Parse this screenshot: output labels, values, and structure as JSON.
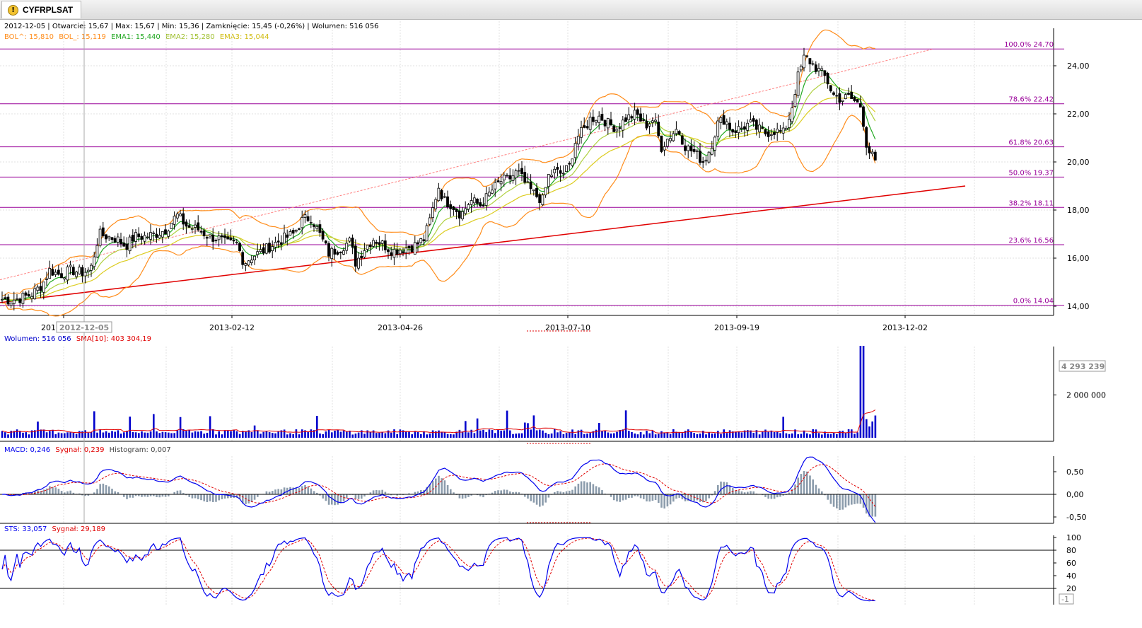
{
  "window": {
    "tab_title": "CYFRPLSAT"
  },
  "colors": {
    "candle": "#000000",
    "bol": "#ff8c1a",
    "ema1": "#22a822",
    "ema2": "#b0d040",
    "ema3": "#dccc20",
    "fib": "#990099",
    "trend_upper": "#ff8080",
    "trend_lower": "#e00000",
    "volume": "#0000cc",
    "sma": "#e00000",
    "macd": "#0000ee",
    "signal": "#e00000",
    "histogram": "#8c9cac",
    "sts": "#0000ee",
    "sts_signal": "#e00000"
  },
  "header": {
    "ohlc": "2012-12-05 | Otwarcie: 15,67 | Max: 15,67 | Min: 15,36 | Zamknięcie: 15,45 (-0,26%)  | Wolumen: 516 056",
    "bol_up": "BOL^: 15,810",
    "bol_dn": "BOL_: 15,119",
    "ema1": "EMA1: 15,440",
    "ema2": "EMA2: 15,280",
    "ema3": "EMA3: 15,044"
  },
  "cursor": {
    "date_label": "2012-12-05",
    "x_label_partial": "201"
  },
  "volume_panel": {
    "label": "Wolumen: 516 056",
    "sma_label": "SMA[10]: 403 304,19",
    "max_badge": "4 293 239"
  },
  "macd_panel": {
    "macd_label": "MACD: 0,246",
    "signal_label": "Sygnał: 0,239",
    "hist_label": "Histogram: 0,007"
  },
  "sts_panel": {
    "sts_label": "STS: 33,057",
    "signal_label": "Sygnał: 29,189",
    "badge": "-1"
  },
  "chart_data": [
    {
      "type": "candlestick",
      "title": "CYFRPLSAT",
      "x_ticks": [
        "2013-02-12",
        "2013-04-26",
        "2013-07-10",
        "2013-09-19",
        "2013-12-02"
      ],
      "y_ticks": [
        "14,00",
        "16,00",
        "18,00",
        "20,00",
        "22,00",
        "24,00"
      ],
      "ylim": [
        14,
        25
      ],
      "grid": true,
      "fibonacci": [
        {
          "label": "100.0% 24.70",
          "value": 24.7
        },
        {
          "label": "78.6% 22.42",
          "value": 22.42
        },
        {
          "label": "61.8% 20.63",
          "value": 20.63
        },
        {
          "label": "50.0% 19.37",
          "value": 19.37
        },
        {
          "label": "38.2% 18.11",
          "value": 18.11
        },
        {
          "label": "23.6% 16.56",
          "value": 16.56
        },
        {
          "label": "0.0% 14.04",
          "value": 14.04
        }
      ],
      "close_series": [
        [
          0,
          14.3
        ],
        [
          15,
          14.25
        ],
        [
          30,
          14.35
        ],
        [
          45,
          14.5
        ],
        [
          60,
          14.9
        ],
        [
          70,
          15.5
        ],
        [
          85,
          15.3
        ],
        [
          100,
          15.5
        ],
        [
          115,
          15.4
        ],
        [
          128,
          15.5
        ],
        [
          140,
          17.0
        ],
        [
          152,
          16.9
        ],
        [
          165,
          16.8
        ],
        [
          178,
          16.5
        ],
        [
          190,
          16.9
        ],
        [
          205,
          16.9
        ],
        [
          220,
          17.0
        ],
        [
          235,
          17.2
        ],
        [
          250,
          17.8
        ],
        [
          265,
          17.3
        ],
        [
          280,
          17.2
        ],
        [
          295,
          16.9
        ],
        [
          310,
          16.8
        ],
        [
          320,
          16.6
        ],
        [
          335,
          16.6
        ],
        [
          345,
          15.8
        ],
        [
          358,
          16.1
        ],
        [
          372,
          16.3
        ],
        [
          388,
          16.6
        ],
        [
          400,
          16.8
        ],
        [
          415,
          17.0
        ],
        [
          428,
          17.6
        ],
        [
          440,
          17.7
        ],
        [
          452,
          17.0
        ],
        [
          465,
          16.2
        ],
        [
          480,
          16.4
        ],
        [
          495,
          16.7
        ],
        [
          503,
          15.8
        ],
        [
          515,
          16.4
        ],
        [
          528,
          16.8
        ],
        [
          540,
          16.6
        ],
        [
          555,
          16.3
        ],
        [
          570,
          16.4
        ],
        [
          585,
          16.5
        ],
        [
          600,
          16.8
        ],
        [
          610,
          17.8
        ],
        [
          620,
          19.0
        ],
        [
          628,
          18.4
        ],
        [
          640,
          18.2
        ],
        [
          652,
          17.8
        ],
        [
          665,
          18.4
        ],
        [
          680,
          18.2
        ],
        [
          695,
          18.8
        ],
        [
          708,
          19.2
        ],
        [
          720,
          19.3
        ],
        [
          732,
          19.6
        ],
        [
          745,
          19.0
        ],
        [
          758,
          18.6
        ],
        [
          768,
          18.4
        ],
        [
          775,
          19.4
        ],
        [
          785,
          19.6
        ],
        [
          795,
          19.5
        ],
        [
          805,
          19.8
        ],
        [
          815,
          21.0
        ],
        [
          825,
          21.3
        ],
        [
          835,
          21.8
        ],
        [
          848,
          21.9
        ],
        [
          860,
          21.6
        ],
        [
          872,
          21.4
        ],
        [
          885,
          21.8
        ],
        [
          900,
          22.0
        ],
        [
          912,
          21.5
        ],
        [
          925,
          21.8
        ],
        [
          935,
          20.6
        ],
        [
          945,
          21.0
        ],
        [
          958,
          21.4
        ],
        [
          970,
          20.6
        ],
        [
          982,
          20.4
        ],
        [
          995,
          20.0
        ],
        [
          1005,
          20.6
        ],
        [
          1015,
          21.6
        ],
        [
          1025,
          21.8
        ],
        [
          1035,
          21.3
        ],
        [
          1048,
          21.4
        ],
        [
          1060,
          21.6
        ],
        [
          1070,
          21.4
        ],
        [
          1082,
          21.2
        ],
        [
          1095,
          21.3
        ],
        [
          1108,
          21.2
        ],
        [
          1118,
          22.0
        ],
        [
          1128,
          23.5
        ],
        [
          1138,
          24.4
        ],
        [
          1148,
          24.1
        ],
        [
          1158,
          23.8
        ],
        [
          1168,
          23.5
        ],
        [
          1178,
          22.8
        ],
        [
          1190,
          22.6
        ],
        [
          1200,
          22.7
        ],
        [
          1210,
          22.5
        ],
        [
          1218,
          22.3
        ],
        [
          1226,
          20.6
        ],
        [
          1234,
          20.2
        ],
        [
          1242,
          19.7
        ]
      ],
      "trendlines": [
        {
          "name": "upper",
          "from": [
            0,
            15.1
          ],
          "to": [
            1320,
            24.7
          ]
        },
        {
          "name": "lower",
          "from": [
            0,
            14.15
          ],
          "to": [
            1365,
            19.0
          ]
        }
      ]
    },
    {
      "type": "bar",
      "title": "Wolumen",
      "y_ticks": [
        "2 000 000"
      ],
      "ylim": [
        0,
        4500000
      ],
      "peak_value": 4293239,
      "sma_period": 10
    },
    {
      "type": "line",
      "title": "MACD",
      "y_ticks": [
        "0,50",
        "0,00",
        "-0,50"
      ],
      "ylim": [
        -0.6,
        0.8
      ]
    },
    {
      "type": "line",
      "title": "STS",
      "y_ticks": [
        "100",
        "80",
        "60",
        "40",
        "20"
      ],
      "ylim": [
        0,
        100
      ],
      "levels": [
        80,
        20
      ]
    }
  ]
}
